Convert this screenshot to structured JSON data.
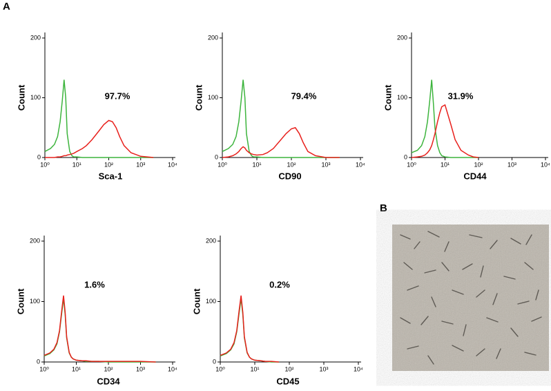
{
  "panel_labels": [
    "A",
    "B"
  ],
  "chart_data": [
    {
      "type": "line",
      "x_label": "Sca-1",
      "y_label": "Count",
      "annotation": "97.7%",
      "xscale": "log",
      "xlim": [
        1,
        10000
      ],
      "xticks": [
        {
          "value": 1,
          "label": "10⁰"
        },
        {
          "value": 10,
          "label": "10¹"
        },
        {
          "value": 100,
          "label": "10²"
        },
        {
          "value": 1000,
          "label": "10³"
        },
        {
          "value": 10000,
          "label": "10⁴"
        }
      ],
      "ylim": [
        0,
        200
      ],
      "yticks": [
        0,
        100,
        200
      ],
      "x": [
        1,
        1.5,
        2,
        2.5,
        3,
        3.5,
        4,
        4.5,
        5,
        6,
        7,
        8,
        10,
        15,
        20,
        30,
        50,
        70,
        100,
        130,
        170,
        220,
        300,
        500,
        1000,
        2500
      ],
      "series": [
        {
          "color": "#3cb43c",
          "values": [
            10,
            15,
            22,
            35,
            60,
            95,
            130,
            100,
            40,
            10,
            3,
            1,
            1,
            0,
            0,
            0,
            0,
            0,
            0,
            0,
            0,
            0,
            0,
            0,
            0,
            0
          ]
        },
        {
          "color": "#e8201c",
          "values": [
            0,
            0,
            0,
            1,
            1,
            2,
            3,
            3,
            4,
            5,
            6,
            7,
            10,
            15,
            20,
            30,
            45,
            55,
            62,
            60,
            50,
            35,
            20,
            8,
            2,
            0
          ]
        }
      ]
    },
    {
      "type": "line",
      "x_label": "CD90",
      "y_label": "Count",
      "annotation": "79.4%",
      "xscale": "log",
      "xlim": [
        1,
        10000
      ],
      "xticks": [
        {
          "value": 1,
          "label": "10⁰"
        },
        {
          "value": 10,
          "label": "10¹"
        },
        {
          "value": 100,
          "label": "10²"
        },
        {
          "value": 1000,
          "label": "10³"
        },
        {
          "value": 10000,
          "label": "10⁴"
        }
      ],
      "ylim": [
        0,
        200
      ],
      "yticks": [
        0,
        100,
        200
      ],
      "x": [
        1,
        1.5,
        2,
        2.5,
        3,
        3.5,
        4,
        4.5,
        5,
        6,
        7,
        8,
        10,
        15,
        20,
        30,
        50,
        70,
        100,
        130,
        170,
        220,
        300,
        500,
        1000,
        2500
      ],
      "series": [
        {
          "color": "#3cb43c",
          "values": [
            10,
            15,
            22,
            35,
            60,
            95,
            130,
            100,
            40,
            10,
            3,
            1,
            1,
            0,
            0,
            0,
            0,
            0,
            0,
            0,
            0,
            0,
            0,
            0,
            0,
            0
          ]
        },
        {
          "color": "#e8201c",
          "values": [
            0,
            1,
            3,
            6,
            10,
            15,
            18,
            16,
            12,
            8,
            6,
            5,
            4,
            5,
            8,
            15,
            30,
            40,
            48,
            50,
            40,
            25,
            10,
            3,
            0,
            0
          ]
        }
      ]
    },
    {
      "type": "line",
      "x_label": "CD44",
      "y_label": "Count",
      "annotation": "31.9%",
      "xscale": "log",
      "xlim": [
        1,
        10000
      ],
      "xticks": [
        {
          "value": 1,
          "label": "10⁰"
        },
        {
          "value": 10,
          "label": "10¹"
        },
        {
          "value": 100,
          "label": "10²"
        },
        {
          "value": 1000,
          "label": "10³"
        },
        {
          "value": 10000,
          "label": "10⁴"
        }
      ],
      "ylim": [
        0,
        200
      ],
      "yticks": [
        0,
        100,
        200
      ],
      "x": [
        1,
        1.5,
        2,
        2.5,
        3,
        3.5,
        4,
        4.5,
        5,
        6,
        7,
        8,
        10,
        15,
        20,
        30,
        50,
        70,
        100
      ],
      "series": [
        {
          "color": "#3cb43c",
          "values": [
            8,
            12,
            20,
            35,
            60,
            95,
            130,
            90,
            50,
            20,
            8,
            3,
            1,
            0,
            0,
            0,
            0,
            0,
            0
          ]
        },
        {
          "color": "#e8201c",
          "values": [
            0,
            1,
            2,
            4,
            8,
            13,
            20,
            30,
            40,
            60,
            75,
            85,
            88,
            55,
            30,
            12,
            4,
            1,
            0
          ]
        }
      ]
    },
    {
      "type": "line",
      "x_label": "CD34",
      "y_label": "Count",
      "annotation": "1.6%",
      "xscale": "log",
      "xlim": [
        1,
        10000
      ],
      "xticks": [
        {
          "value": 1,
          "label": "10⁰"
        },
        {
          "value": 10,
          "label": "10¹"
        },
        {
          "value": 100,
          "label": "10²"
        },
        {
          "value": 1000,
          "label": "10³"
        },
        {
          "value": 10000,
          "label": "10⁴"
        }
      ],
      "ylim": [
        0,
        200
      ],
      "yticks": [
        0,
        100,
        200
      ],
      "x": [
        1,
        1.5,
        2,
        2.5,
        3,
        3.5,
        4,
        4.5,
        5,
        6,
        7,
        8,
        10,
        15,
        20,
        30,
        50,
        100,
        300,
        1000,
        3000
      ],
      "series": [
        {
          "color": "#3cb43c",
          "values": [
            10,
            14,
            20,
            30,
            50,
            80,
            105,
            78,
            40,
            15,
            8,
            5,
            3,
            2,
            1,
            1,
            1,
            0,
            0,
            0,
            0
          ]
        },
        {
          "color": "#e8201c",
          "values": [
            11,
            15,
            21,
            32,
            52,
            84,
            110,
            82,
            42,
            16,
            8,
            5,
            3,
            2,
            2,
            1,
            1,
            1,
            1,
            1,
            0
          ]
        }
      ]
    },
    {
      "type": "line",
      "x_label": "CD45",
      "y_label": "Count",
      "annotation": "0.2%",
      "xscale": "log",
      "xlim": [
        1,
        10000
      ],
      "xticks": [
        {
          "value": 1,
          "label": "10⁰"
        },
        {
          "value": 10,
          "label": "10¹"
        },
        {
          "value": 100,
          "label": "10²"
        },
        {
          "value": 1000,
          "label": "10³"
        },
        {
          "value": 10000,
          "label": "10⁴"
        }
      ],
      "ylim": [
        0,
        200
      ],
      "yticks": [
        0,
        100,
        200
      ],
      "x": [
        1,
        1.5,
        2,
        2.5,
        3,
        3.5,
        4,
        4.5,
        5,
        6,
        7,
        8,
        10,
        15,
        20,
        30,
        50
      ],
      "series": [
        {
          "color": "#3cb43c",
          "values": [
            10,
            14,
            20,
            30,
            50,
            80,
            105,
            78,
            40,
            15,
            8,
            5,
            3,
            2,
            1,
            0,
            0
          ]
        },
        {
          "color": "#e8201c",
          "values": [
            11,
            15,
            21,
            32,
            52,
            84,
            110,
            82,
            42,
            16,
            8,
            5,
            3,
            2,
            1,
            1,
            0
          ]
        }
      ]
    }
  ]
}
